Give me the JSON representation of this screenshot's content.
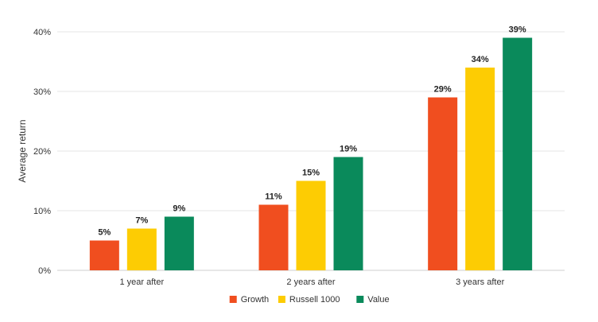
{
  "chart_data": {
    "type": "bar",
    "title": "",
    "xlabel": "",
    "ylabel": "Average return",
    "categories": [
      "1 year after",
      "2 years after",
      "3 years after"
    ],
    "series": [
      {
        "name": "Growth",
        "values": [
          5,
          11,
          29
        ],
        "color": "#f04e1f"
      },
      {
        "name": "Russell 1000",
        "values": [
          7,
          15,
          34
        ],
        "color": "#fdcc03"
      },
      {
        "name": "Value",
        "values": [
          9,
          19,
          39
        ],
        "color": "#0a8a5b"
      }
    ],
    "data_labels": [
      [
        "5%",
        "11%",
        "29%"
      ],
      [
        "7%",
        "15%",
        "34%"
      ],
      [
        "9%",
        "19%",
        "39%"
      ]
    ],
    "ylim": [
      0,
      40
    ],
    "yticks": [
      0,
      10,
      20,
      30,
      40
    ],
    "ytick_labels": [
      "0%",
      "10%",
      "20%",
      "30%",
      "40%"
    ],
    "grid": true,
    "legend_position": "bottom"
  }
}
